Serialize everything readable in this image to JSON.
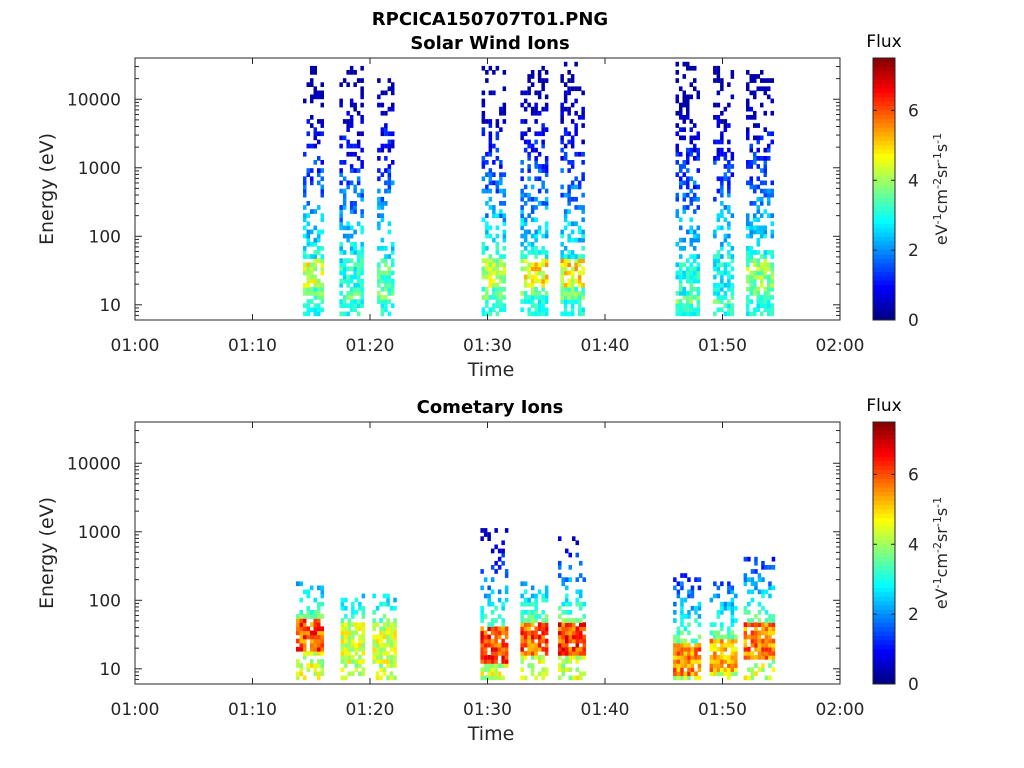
{
  "figure": {
    "title": "RPCICA150707T01.PNG"
  },
  "colormap": {
    "name": "jet",
    "stops": [
      "#00007f",
      "#0000ff",
      "#007fff",
      "#00ffff",
      "#7fff7f",
      "#ffff00",
      "#ff7f00",
      "#ff0000",
      "#7f0000"
    ]
  },
  "chart_data": [
    {
      "type": "heatmap",
      "title": "Solar Wind Ions",
      "xlabel": "Time",
      "ylabel": "Energy (eV)",
      "x_ticks": [
        "01:00",
        "01:10",
        "01:20",
        "01:30",
        "01:40",
        "01:50",
        "02:00"
      ],
      "xlim": [
        "01:00",
        "02:00"
      ],
      "y_scale": "log",
      "y_ticks": [
        "10",
        "100",
        "1000",
        "10000"
      ],
      "ylim": [
        6,
        40000
      ],
      "colorbar": {
        "title": "Flux",
        "label": "eV-1cm-2sr-1s-1",
        "ticks": [
          "0",
          "2",
          "4",
          "6"
        ],
        "range": [
          0,
          7.5
        ]
      },
      "bursts": [
        {
          "start_min": 14.3,
          "end_min": 15.8,
          "emax_ev": 32000,
          "peak_ev": 28,
          "peak_flux": 5.2
        },
        {
          "start_min": 17.4,
          "end_min": 19.3,
          "emax_ev": 30000,
          "peak_ev": 25,
          "peak_flux": 3.6
        },
        {
          "start_min": 20.6,
          "end_min": 22.0,
          "emax_ev": 20000,
          "peak_ev": 28,
          "peak_flux": 4.0
        },
        {
          "start_min": 29.5,
          "end_min": 31.5,
          "emax_ev": 30000,
          "peak_ev": 28,
          "peak_flux": 4.8
        },
        {
          "start_min": 32.8,
          "end_min": 35.0,
          "emax_ev": 30000,
          "peak_ev": 30,
          "peak_flux": 5.5
        },
        {
          "start_min": 36.2,
          "end_min": 38.1,
          "emax_ev": 35000,
          "peak_ev": 28,
          "peak_flux": 5.6
        },
        {
          "start_min": 46.0,
          "end_min": 47.9,
          "emax_ev": 33000,
          "peak_ev": 22,
          "peak_flux": 3.5
        },
        {
          "start_min": 49.2,
          "end_min": 50.8,
          "emax_ev": 30000,
          "peak_ev": 22,
          "peak_flux": 3.3
        },
        {
          "start_min": 52.0,
          "end_min": 54.2,
          "emax_ev": 25000,
          "peak_ev": 30,
          "peak_flux": 4.5
        }
      ]
    },
    {
      "type": "heatmap",
      "title": "Cometary Ions",
      "xlabel": "Time",
      "ylabel": "Energy (eV)",
      "x_ticks": [
        "01:00",
        "01:10",
        "01:20",
        "01:30",
        "01:40",
        "01:50",
        "02:00"
      ],
      "xlim": [
        "01:00",
        "02:00"
      ],
      "y_scale": "log",
      "y_ticks": [
        "10",
        "100",
        "1000",
        "10000"
      ],
      "ylim": [
        6,
        40000
      ],
      "colorbar": {
        "title": "Flux",
        "label": "eV-1cm-2sr-1s-1",
        "ticks": [
          "0",
          "2",
          "4",
          "6"
        ],
        "range": [
          0,
          7.5
        ]
      },
      "bursts": [
        {
          "start_min": 13.7,
          "end_min": 15.8,
          "emax_ev": 200,
          "peak_ev": 30,
          "peak_flux": 6.8
        },
        {
          "start_min": 17.5,
          "end_min": 19.4,
          "emax_ev": 130,
          "peak_ev": 25,
          "peak_flux": 5.0
        },
        {
          "start_min": 20.2,
          "end_min": 22.0,
          "emax_ev": 130,
          "peak_ev": 25,
          "peak_flux": 5.0
        },
        {
          "start_min": 29.4,
          "end_min": 31.5,
          "emax_ev": 1100,
          "peak_ev": 22,
          "peak_flux": 6.9
        },
        {
          "start_min": 32.8,
          "end_min": 34.9,
          "emax_ev": 200,
          "peak_ev": 28,
          "peak_flux": 6.8
        },
        {
          "start_min": 36.0,
          "end_min": 38.2,
          "emax_ev": 900,
          "peak_ev": 28,
          "peak_flux": 7.0
        },
        {
          "start_min": 45.8,
          "end_min": 48.0,
          "emax_ev": 240,
          "peak_ev": 14,
          "peak_flux": 6.4
        },
        {
          "start_min": 48.9,
          "end_min": 51.0,
          "emax_ev": 200,
          "peak_ev": 16,
          "peak_flux": 6.0
        },
        {
          "start_min": 51.8,
          "end_min": 54.2,
          "emax_ev": 450,
          "peak_ev": 26,
          "peak_flux": 6.5
        }
      ]
    }
  ]
}
